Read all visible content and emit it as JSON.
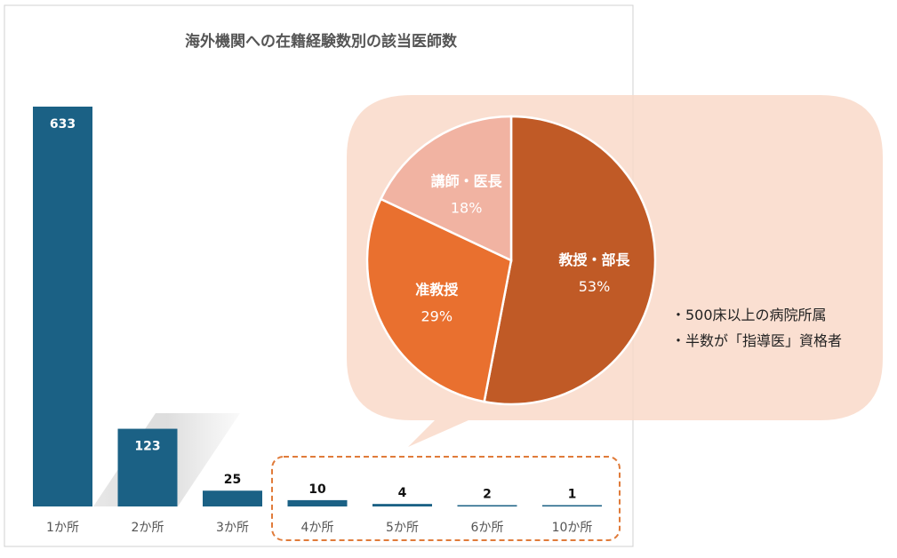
{
  "chart_data": [
    {
      "type": "bar",
      "title": "海外機関への在籍経験数別の該当医師数",
      "categories": [
        "1か所",
        "2か所",
        "3か所",
        "4か所",
        "5か所",
        "6か所",
        "10か所"
      ],
      "values": [
        633,
        123,
        25,
        10,
        4,
        2,
        1
      ],
      "value_labels": [
        "633",
        "123",
        "25",
        "10",
        "4",
        "2",
        "1"
      ],
      "xlabel": "",
      "ylabel": "",
      "ylim": [
        0,
        633
      ],
      "grid": false,
      "highlighted_categories": [
        "4か所",
        "5か所",
        "6か所",
        "10か所"
      ]
    },
    {
      "type": "pie",
      "slices": [
        {
          "label": "教授・部長",
          "value": 53,
          "pct_label": "53%"
        },
        {
          "label": "准教授",
          "value": 29,
          "pct_label": "29%"
        },
        {
          "label": "講師・医長",
          "value": 18,
          "pct_label": "18%"
        }
      ],
      "notes": [
        "・500床以上の病院所属",
        "・半数が「指導医」資格者"
      ]
    }
  ],
  "colors": {
    "bar": "#1b6185",
    "label_dark": "#111111",
    "label_light": "#ffffff",
    "title": "#555555",
    "axis_text": "#555555",
    "pie": [
      "#c05a26",
      "#e9702f",
      "#f1b3a2"
    ],
    "callout_bg": "#f9d9c9",
    "highlight_border": "#e07b3a",
    "notes_text": "#222222"
  }
}
